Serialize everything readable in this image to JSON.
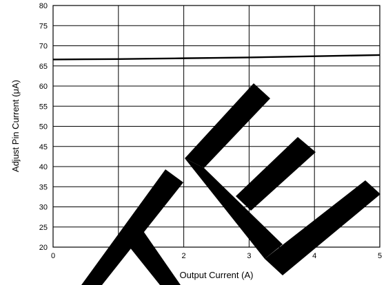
{
  "chart_data": {
    "type": "line",
    "xlabel": "Output Current (A)",
    "ylabel": "Adjust Pin Current (μA)",
    "xlim": [
      0,
      5
    ],
    "ylim": [
      20,
      80
    ],
    "xticks": [
      "0",
      "1",
      "2",
      "3",
      "4",
      "5"
    ],
    "yticks": [
      "20",
      "25",
      "30",
      "35",
      "40",
      "45",
      "50",
      "55",
      "60",
      "65",
      "70",
      "75",
      "80"
    ],
    "grid": true,
    "series": [
      {
        "x": [
          0,
          0.5,
          1,
          1.5,
          2,
          2.5,
          3,
          3.5,
          4,
          4.5,
          5
        ],
        "y": [
          66.6,
          66.65,
          66.7,
          66.8,
          66.9,
          67.0,
          67.1,
          67.25,
          67.4,
          67.55,
          67.7
        ],
        "color": "#000000"
      }
    ]
  }
}
